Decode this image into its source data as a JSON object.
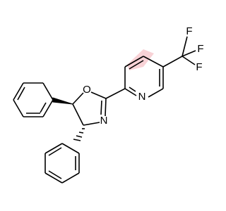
{
  "atoms": {
    "oxygen": "O",
    "oxazoline_nitrogen": "N",
    "pyridine_nitrogen": "N",
    "fluorine_top": "F",
    "fluorine_right": "F",
    "fluorine_bottom": "F"
  }
}
